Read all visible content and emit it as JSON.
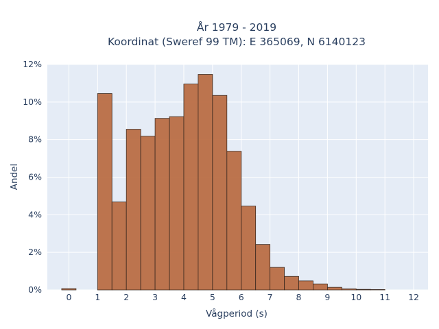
{
  "chart_data": {
    "type": "bar",
    "title": [
      "År 1979 - 2019",
      "Koordinat (Sweref 99 TM): E 365069, N 6140123"
    ],
    "xlabel": "Vågperiod (s)",
    "ylabel": "Andel",
    "xlim": [
      -0.75,
      12.5
    ],
    "ylim": [
      0,
      12
    ],
    "x_ticks": [
      0,
      1,
      2,
      3,
      4,
      5,
      6,
      7,
      8,
      9,
      10,
      11,
      12
    ],
    "y_ticks": [
      0,
      2,
      4,
      6,
      8,
      10,
      12
    ],
    "y_tick_suffix": "%",
    "grid": true,
    "bin_width": 0.5,
    "bins": [
      {
        "x0": -0.25,
        "value": 0.07
      },
      {
        "x0": 1.0,
        "value": 10.45
      },
      {
        "x0": 1.5,
        "value": 4.68
      },
      {
        "x0": 2.0,
        "value": 8.55
      },
      {
        "x0": 2.5,
        "value": 8.18
      },
      {
        "x0": 3.0,
        "value": 9.13
      },
      {
        "x0": 3.5,
        "value": 9.22
      },
      {
        "x0": 4.0,
        "value": 10.96
      },
      {
        "x0": 4.5,
        "value": 11.47
      },
      {
        "x0": 5.0,
        "value": 10.35
      },
      {
        "x0": 5.5,
        "value": 7.38
      },
      {
        "x0": 6.0,
        "value": 4.46
      },
      {
        "x0": 6.5,
        "value": 2.42
      },
      {
        "x0": 7.0,
        "value": 1.2
      },
      {
        "x0": 7.5,
        "value": 0.72
      },
      {
        "x0": 8.0,
        "value": 0.48
      },
      {
        "x0": 8.5,
        "value": 0.32
      },
      {
        "x0": 9.0,
        "value": 0.14
      },
      {
        "x0": 9.5,
        "value": 0.06
      },
      {
        "x0": 10.0,
        "value": 0.03
      },
      {
        "x0": 10.5,
        "value": 0.02
      }
    ],
    "colors": {
      "bar": "#b9693f",
      "bar_edge": "#3b2a20",
      "plot_bg": "#e5ecf6",
      "grid": "#ffffff"
    }
  }
}
